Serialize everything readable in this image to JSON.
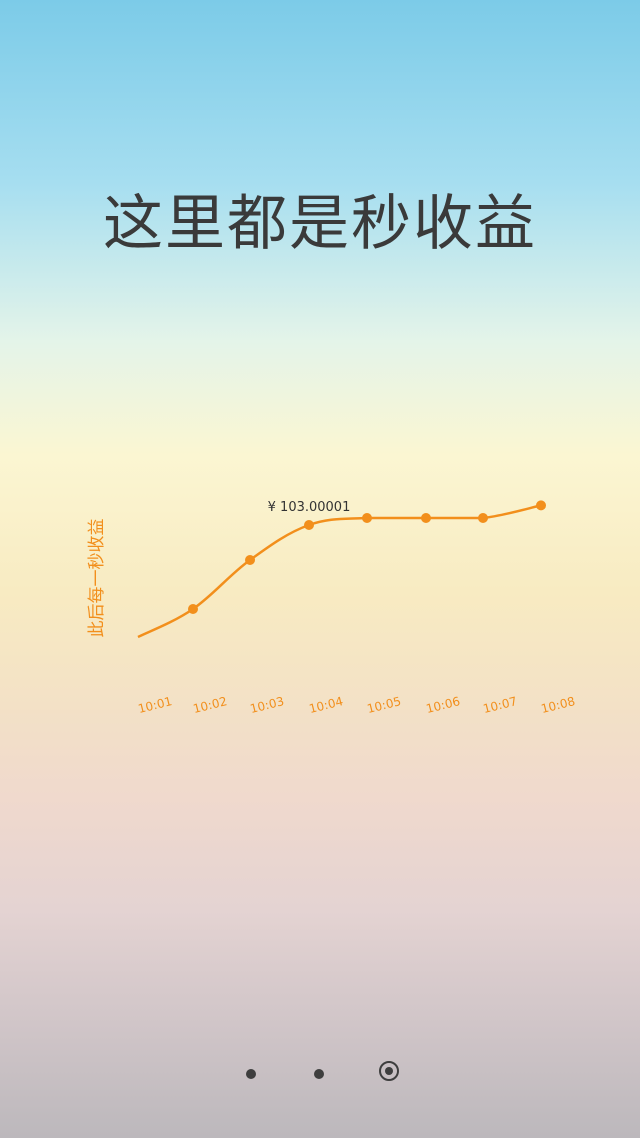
{
  "headline": "这里都是秒收益",
  "chart_data": {
    "type": "line",
    "ylabel": "此后每一秒收益",
    "categories": [
      "10:01",
      "10:02",
      "10:03",
      "10:04",
      "10:05",
      "10:06",
      "10:07",
      "10:08"
    ],
    "series": [
      {
        "values": [
          0.0,
          0.2,
          0.55,
          0.8,
          0.85,
          0.85,
          0.85,
          0.94
        ],
        "marker_shown": [
          false,
          true,
          true,
          true,
          true,
          true,
          true,
          true
        ]
      }
    ],
    "ylim": [
      0,
      1
    ],
    "annotations": [
      {
        "text": "¥ 103.00001",
        "category": "10:04"
      }
    ],
    "grid": false,
    "colors": {
      "line": "#f28f1c",
      "marker": "#f28f1c",
      "axis_label": "#f28f1c",
      "tick_label": "#f28f1c",
      "annotation": "#333333"
    }
  },
  "pager": {
    "dots": [
      "page-1",
      "page-2",
      "page-3"
    ],
    "active_index": 2
  }
}
